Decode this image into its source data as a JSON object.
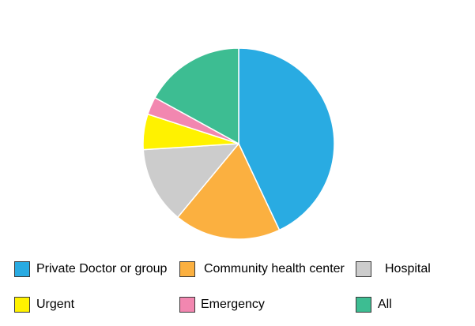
{
  "chart_data": {
    "type": "pie",
    "title": "",
    "start_angle_deg": 0,
    "direction": "clockwise",
    "slices": [
      {
        "label": "Private Doctor or group",
        "value": 43,
        "color": "#29ABE2"
      },
      {
        "label": "Community health center",
        "value": 18,
        "color": "#FBB040"
      },
      {
        "label": "Hospital",
        "value": 13,
        "color": "#CCCCCC"
      },
      {
        "label": "Urgent",
        "value": 6,
        "color": "#FFF200"
      },
      {
        "label": "Emergency",
        "value": 3,
        "color": "#F287B0"
      },
      {
        "label": "All",
        "value": 17,
        "color": "#3DBD92"
      }
    ],
    "legend": {
      "position": "bottom",
      "columns": 3
    }
  }
}
